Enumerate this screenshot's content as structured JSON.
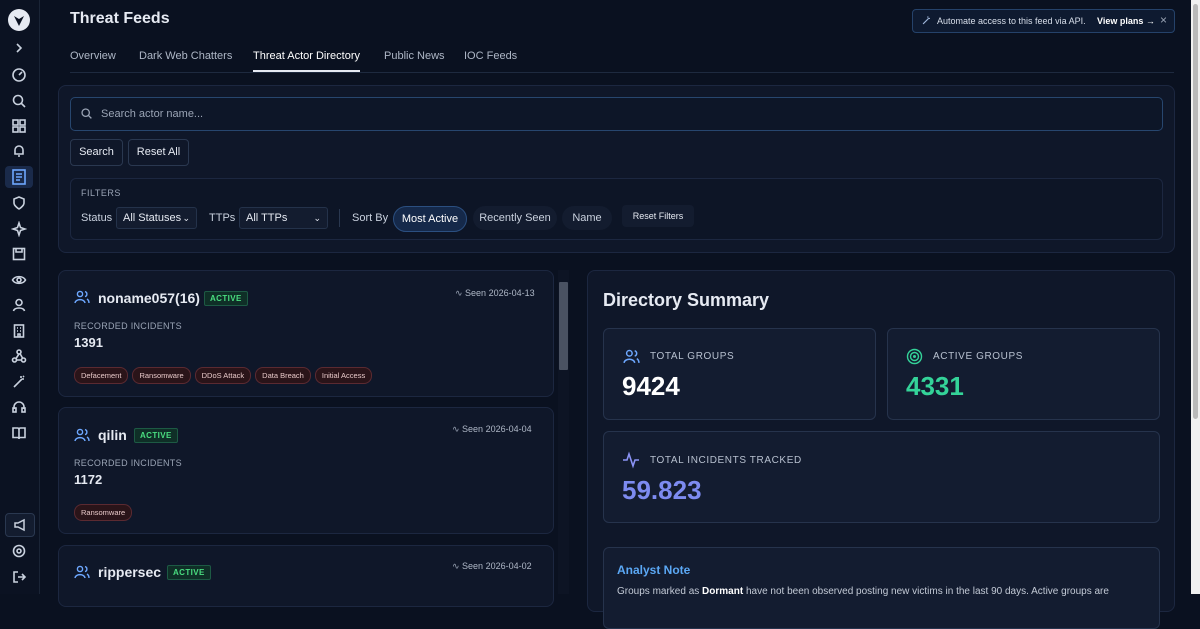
{
  "header": {
    "title": "Threat Feeds",
    "banner_text": "Automate access to this feed via API.",
    "banner_link": "View plans →"
  },
  "tabs": [
    "Overview",
    "Dark Web Chatters",
    "Threat Actor Directory",
    "Public News",
    "IOC Feeds"
  ],
  "search": {
    "placeholder": "Search actor name...",
    "search_button": "Search",
    "reset_button": "Reset All"
  },
  "filters": {
    "title": "FILTERS",
    "status_label": "Status",
    "status_value": "All Statuses",
    "ttps_label": "TTPs",
    "ttps_value": "All TTPs",
    "sort_label": "Sort By",
    "sort_options": [
      "Most Active",
      "Recently Seen",
      "Name"
    ],
    "reset_filters": "Reset Filters"
  },
  "actors": [
    {
      "name": "noname057(16)",
      "status": "ACTIVE",
      "seen": "Seen 2026-04-13",
      "incidents_label": "RECORDED INCIDENTS",
      "incidents": 1391,
      "tags": [
        "Defacement",
        "Ransomware",
        "DDoS Attack",
        "Data Breach",
        "Initial Access"
      ]
    },
    {
      "name": "qilin",
      "status": "ACTIVE",
      "seen": "Seen 2026-04-04",
      "incidents_label": "RECORDED INCIDENTS",
      "incidents": 1172,
      "tags": [
        "Ransomware"
      ]
    },
    {
      "name": "rippersec",
      "status": "ACTIVE",
      "seen": "Seen 2026-04-02"
    }
  ],
  "summary": {
    "title": "Directory Summary",
    "total_groups_label": "TOTAL GROUPS",
    "total_groups": 9424,
    "active_groups_label": "ACTIVE GROUPS",
    "active_groups": 4331,
    "incidents_label": "TOTAL INCIDENTS TRACKED",
    "incidents": "59.823",
    "note_title": "Analyst Note",
    "note_text_1": "Groups marked as ",
    "note_bold": "Dormant",
    "note_text_2": " have not been observed posting new victims in the last 90 days. Active groups are"
  }
}
